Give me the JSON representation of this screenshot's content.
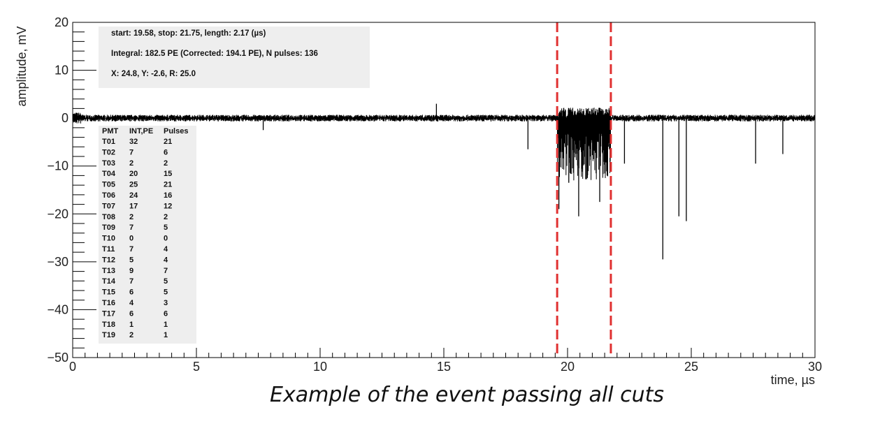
{
  "caption": "Example of the event passing all cuts",
  "chart_data": {
    "type": "line",
    "title": "",
    "xlabel": "time, µs",
    "ylabel": "amplitude, mV",
    "xlim": [
      0,
      30
    ],
    "ylim": [
      -50,
      20
    ],
    "x_ticks": [
      0,
      5,
      10,
      15,
      20,
      25,
      30
    ],
    "y_ticks": [
      20,
      10,
      0,
      -10,
      -20,
      -30,
      -40,
      -50
    ],
    "x_tick_labels": [
      "0",
      "5",
      "10",
      "15",
      "20",
      "25",
      "30"
    ],
    "y_tick_labels": [
      "20",
      "10",
      "0",
      "−10",
      "−20",
      "−30",
      "−40",
      "−50"
    ],
    "grid": false,
    "series": [
      {
        "baseline_mV": 0,
        "color": "#000000",
        "pulses": [
          {
            "x": 7.7,
            "y": -2.5
          },
          {
            "x": 14.7,
            "y": 3.0
          },
          {
            "x": 18.4,
            "y": -6.5
          },
          {
            "x": 19.65,
            "y": -19.0
          },
          {
            "x": 20.05,
            "y": -13.5
          },
          {
            "x": 20.45,
            "y": -20.5
          },
          {
            "x": 20.8,
            "y": -12.5
          },
          {
            "x": 21.3,
            "y": -17.5
          },
          {
            "x": 21.6,
            "y": -12.0
          },
          {
            "x": 22.3,
            "y": -9.5
          },
          {
            "x": 23.85,
            "y": -29.5
          },
          {
            "x": 24.5,
            "y": -20.5
          },
          {
            "x": 24.8,
            "y": -21.5
          },
          {
            "x": 27.6,
            "y": -9.5
          },
          {
            "x": 28.7,
            "y": -7.5
          }
        ]
      }
    ],
    "cut_lines": [
      {
        "x": 19.58,
        "color": "#e03030",
        "style": "dashed"
      },
      {
        "x": 21.75,
        "color": "#e03030",
        "style": "dashed"
      }
    ],
    "stats_box": {
      "lines": [
        "start: 19.58, stop: 21.75, length: 2.17 (µs)",
        "Integral: 182.5 PE (Corrected: 194.1 PE), N pulses: 136",
        "X: 24.8, Y: -2.6, R: 25.0"
      ]
    },
    "pmt_table": {
      "headers": [
        "PMT",
        "INT,PE",
        "Pulses"
      ],
      "rows": [
        [
          "T01",
          "32",
          "21"
        ],
        [
          "T02",
          "7",
          "6"
        ],
        [
          "T03",
          "2",
          "2"
        ],
        [
          "T04",
          "20",
          "15"
        ],
        [
          "T05",
          "25",
          "21"
        ],
        [
          "T06",
          "24",
          "16"
        ],
        [
          "T07",
          "17",
          "12"
        ],
        [
          "T08",
          "2",
          "2"
        ],
        [
          "T09",
          "7",
          "5"
        ],
        [
          "T10",
          "0",
          "0"
        ],
        [
          "T11",
          "7",
          "4"
        ],
        [
          "T12",
          "5",
          "4"
        ],
        [
          "T13",
          "9",
          "7"
        ],
        [
          "T14",
          "7",
          "5"
        ],
        [
          "T15",
          "6",
          "5"
        ],
        [
          "T16",
          "4",
          "3"
        ],
        [
          "T17",
          "6",
          "6"
        ],
        [
          "T18",
          "1",
          "1"
        ],
        [
          "T19",
          "2",
          "1"
        ]
      ]
    }
  }
}
